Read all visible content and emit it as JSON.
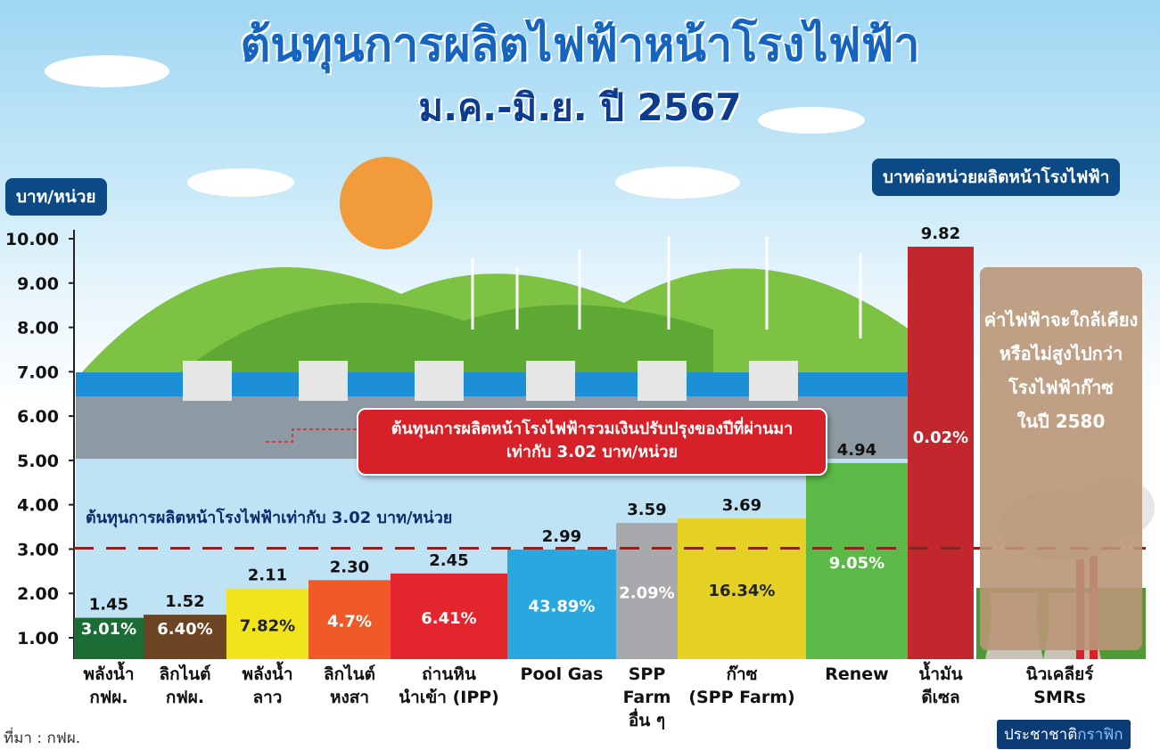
{
  "title": "ต้นทุนการผลิตไฟฟ้าหน้าโรงไฟฟ้า",
  "subtitle": "ม.ค.-มิ.ย. ปี 2567",
  "y_unit_label": "บาท/หน่วย",
  "legend_label": "บาทต่อหน่วยผลิตหน้าโรงไฟฟ้า",
  "callout": {
    "line1": "ต้นทุนการผลิตหน้าโรงไฟฟ้ารวมเงินปรับปรุงของปีที่ผ่านมา",
    "line2": "เท่ากับ 3.02 บาท/หน่วย"
  },
  "dashed_line_label": "ต้นทุนการผลิตหน้าโรงไฟฟ้าเท่ากับ 3.02 บาท/หน่วย",
  "note": {
    "line1": "ค่าไฟฟ้าจะใกล้เคียง",
    "line2": "หรือไม่สูงไปกว่า",
    "line3": "โรงไฟฟ้าก๊าซ",
    "line4": "ในปี 2580"
  },
  "source": "ที่มา : กฟผ.",
  "brand": {
    "part1": "ประชาชาติ",
    "part2": "กราฟิก"
  },
  "chart_data": {
    "type": "bar",
    "ylim": [
      1,
      10
    ],
    "yticks": [
      "1.00",
      "2.00",
      "3.00",
      "4.00",
      "5.00",
      "6.00",
      "7.00",
      "8.00",
      "9.00",
      "10.00"
    ],
    "reference_line": 3.02,
    "categories": [
      [
        "พลังน้ำ",
        "กฟผ."
      ],
      [
        "ลิกไนต์",
        "กฟผ."
      ],
      [
        "พลังน้ำ",
        "ลาว"
      ],
      [
        "ลิกไนต์",
        "หงสา"
      ],
      [
        "ถ่านหิน",
        "นำเข้า (IPP)"
      ],
      [
        "Pool Gas"
      ],
      [
        "SPP",
        "Farm",
        "อื่น ๆ"
      ],
      [
        "ก๊าซ",
        "(SPP Farm)"
      ],
      [
        "Renew"
      ],
      [
        "น้ำมัน",
        "ดีเซล"
      ],
      [
        "นิวเคลียร์",
        "SMRs"
      ]
    ],
    "values": [
      1.45,
      1.52,
      2.11,
      2.3,
      2.45,
      2.99,
      3.59,
      3.69,
      4.94,
      9.82,
      null
    ],
    "value_labels": [
      "1.45",
      "1.52",
      "2.11",
      "2.30",
      "2.45",
      "2.99",
      "3.59",
      "3.69",
      "4.94",
      "9.82",
      ""
    ],
    "shares": [
      "3.01%",
      "6.40%",
      "7.82%",
      "4.7%",
      "6.41%",
      "43.89%",
      "2.09%",
      "16.34%",
      "9.05%",
      "0.02%",
      ""
    ],
    "colors": [
      "#1b6d35",
      "#6b4423",
      "#f2e41c",
      "#f05a28",
      "#e3262d",
      "#29a8e0",
      "#a7a9ac",
      "#e5d124",
      "#5ab947",
      "#c1272d",
      ""
    ],
    "share_text_colors": [
      "#ffffff",
      "#ffffff",
      "#222222",
      "#ffffff",
      "#ffffff",
      "#ffffff",
      "#ffffff",
      "#222222",
      "#ffffff",
      "#ffffff",
      ""
    ]
  }
}
